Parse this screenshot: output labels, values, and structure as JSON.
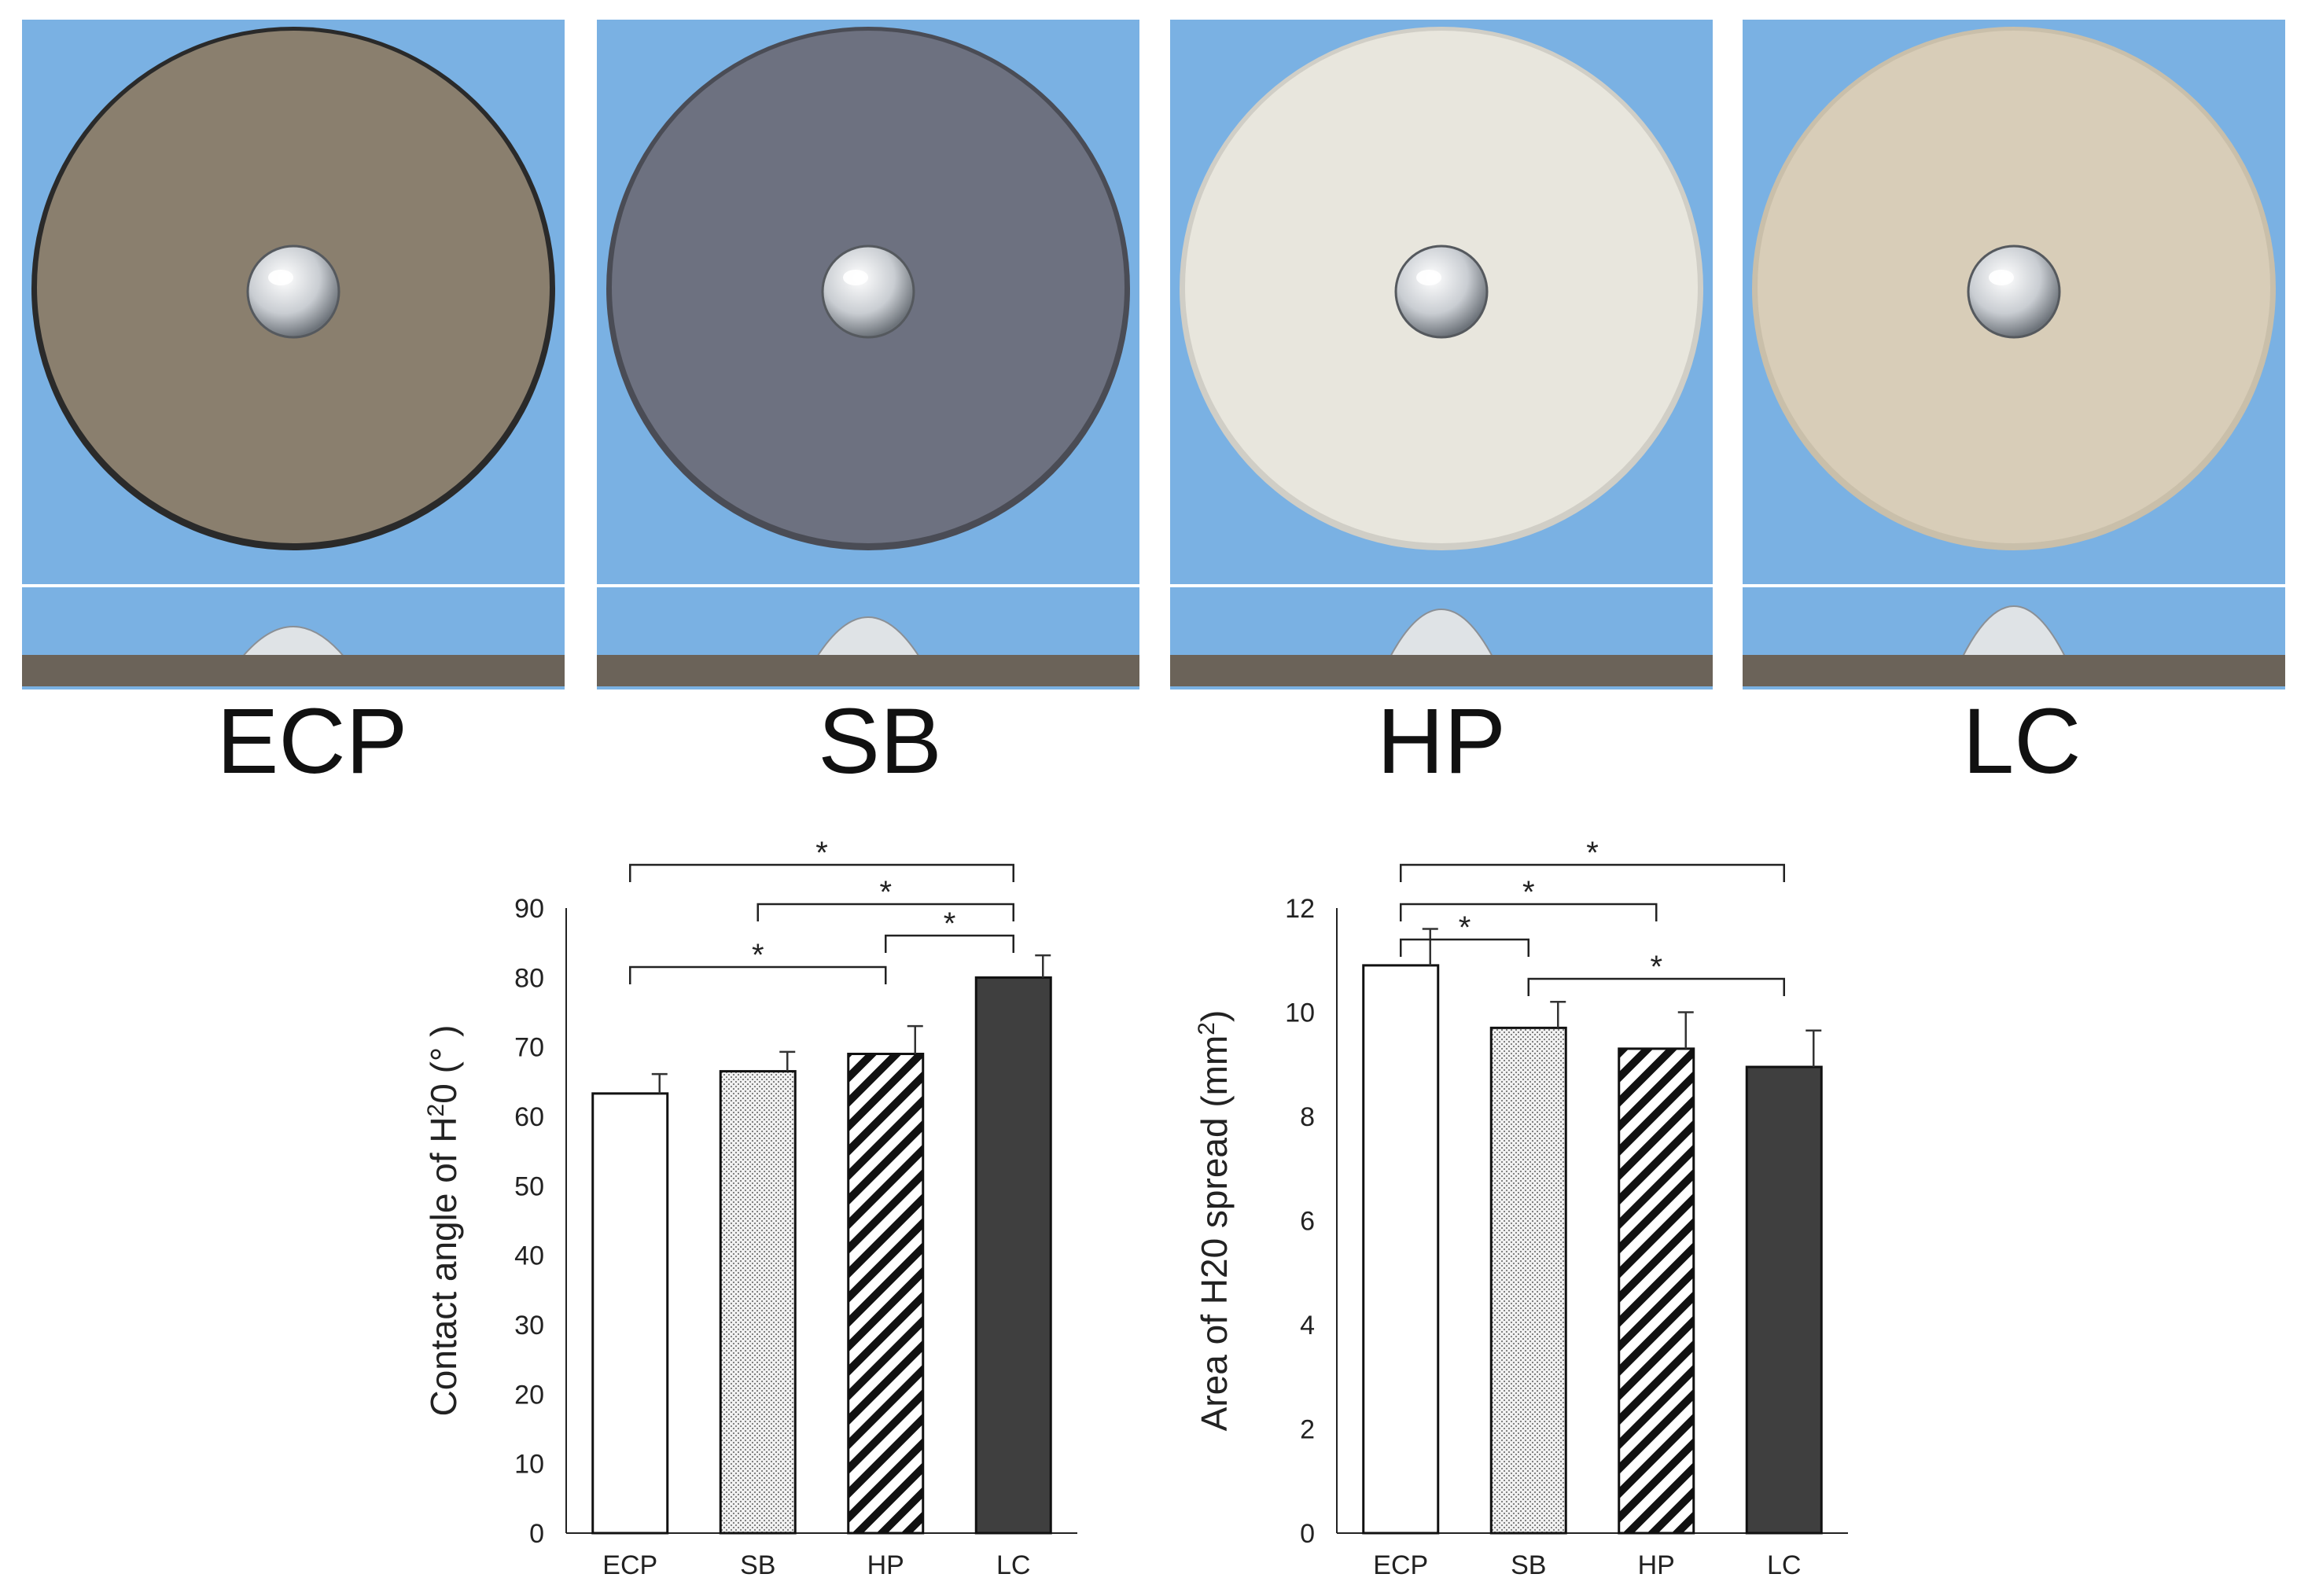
{
  "samples": [
    {
      "label": "ECP",
      "surface_color": "#8a7f6e",
      "edge_color": "#2a2a2a"
    },
    {
      "label": "SB",
      "surface_color": "#6d7180",
      "edge_color": "#4a4c55"
    },
    {
      "label": "HP",
      "surface_color": "#e8e6dd",
      "edge_color": "#d0cec6"
    },
    {
      "label": "LC",
      "surface_color": "#d8cdb8",
      "edge_color": "#c9bfaa"
    }
  ],
  "colors": {
    "photo_background": "#7ab1e3",
    "bar_outline": "#111111",
    "lc_fill": "#3f3f3f"
  },
  "chart_data": [
    {
      "type": "bar",
      "categories": [
        "ECP",
        "SB",
        "HP",
        "LC"
      ],
      "values": [
        63.3,
        66.5,
        69.0,
        80.0
      ],
      "errors": [
        2.8,
        2.8,
        4.0,
        3.2
      ],
      "fills": [
        "white",
        "dots",
        "hatch",
        "dark"
      ],
      "ylabel_text": "Contact angle of H",
      "ylabel_sup": "2",
      "ylabel_suffix": "0 (°  )",
      "ylim": [
        0,
        90
      ],
      "yticks": [
        "0",
        "10",
        "20",
        "30",
        "40",
        "50",
        "60",
        "70",
        "80",
        "90"
      ],
      "significance": [
        {
          "from": 0,
          "to": 3,
          "label": "*"
        },
        {
          "from": 1,
          "to": 3,
          "label": "*"
        },
        {
          "from": 2,
          "to": 3,
          "label": "*"
        },
        {
          "from": 0,
          "to": 2,
          "label": "*"
        }
      ]
    },
    {
      "type": "bar",
      "categories": [
        "ECP",
        "SB",
        "HP",
        "LC"
      ],
      "values": [
        10.9,
        9.7,
        9.3,
        8.95
      ],
      "errors": [
        0.7,
        0.5,
        0.7,
        0.7
      ],
      "fills": [
        "white",
        "dots",
        "hatch",
        "dark"
      ],
      "ylabel_text": "Area of H20 spread (mm",
      "ylabel_sup": "2",
      "ylabel_suffix": ")",
      "ylim": [
        0,
        12
      ],
      "yticks": [
        "0",
        "2",
        "4",
        "6",
        "8",
        "10",
        "12"
      ],
      "significance": [
        {
          "from": 0,
          "to": 3,
          "label": "*"
        },
        {
          "from": 0,
          "to": 2,
          "label": "*"
        },
        {
          "from": 0,
          "to": 1,
          "label": "*"
        },
        {
          "from": 1,
          "to": 3,
          "label": "*"
        }
      ]
    }
  ]
}
